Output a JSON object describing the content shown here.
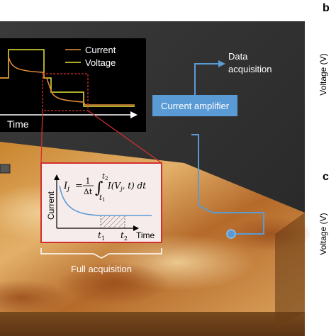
{
  "inset_plot": {
    "legend_current": "Current",
    "legend_voltage": "Voltage",
    "xlabel": "Time",
    "colors": {
      "current": "#e8923a",
      "voltage": "#e8e23a",
      "background": "#000000"
    }
  },
  "amplifier": {
    "label": "Current amplifier",
    "color": "#5b9bd5"
  },
  "data_acquisition": {
    "line1": "Data",
    "line2": "acquisition"
  },
  "integral_box": {
    "ylabel": "Current",
    "xlabel": "Time",
    "lhs": "I",
    "lhs_sub": "j",
    "eq": "=",
    "frac_num": "1",
    "frac_den": "Δt",
    "upper_limit": "t",
    "upper_limit_sub": "2",
    "lower_limit": "t",
    "lower_limit_sub": "1",
    "integrand": "I(V",
    "integrand_sub": "j",
    "integrand_tail": ", t) dt",
    "tick_t": "t",
    "tick_1": "1",
    "tick_2": "2",
    "border_color": "#d32f2f"
  },
  "full_acquisition": {
    "label": "Full acquisition"
  },
  "right_panels": {
    "b_label": "b",
    "c_label": "c",
    "b_ylabel": "Voltage (V)",
    "c_ylabel": "Voltage (V)"
  }
}
